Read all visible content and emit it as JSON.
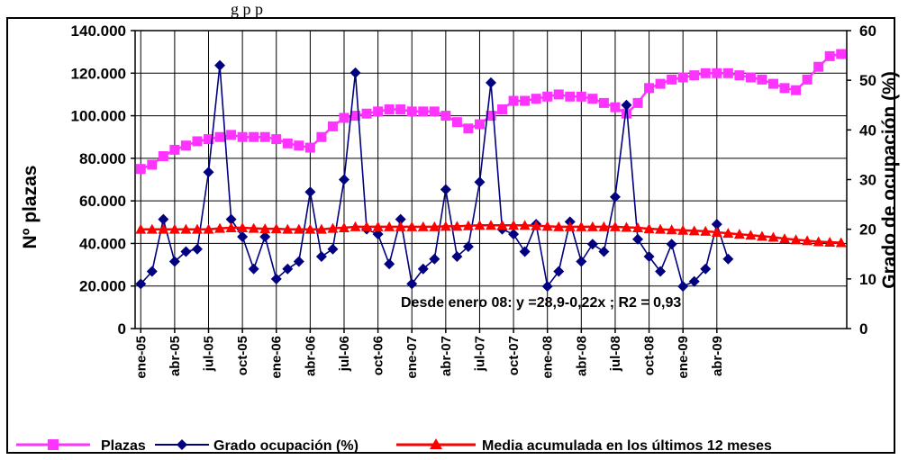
{
  "top_fragment": "g p p",
  "chart_data": {
    "type": "line",
    "ylabel_left": "Nº plazas",
    "ylabel_right": "Grado de ocupación (%)",
    "y_left_lim": [
      0,
      140000
    ],
    "y_right_lim": [
      0,
      60
    ],
    "y_left_ticks": [
      "0",
      "20.000",
      "40.000",
      "60.000",
      "80.000",
      "100.000",
      "120.000",
      "140.000"
    ],
    "y_right_ticks": [
      "0",
      "10",
      "20",
      "30",
      "40",
      "50",
      "60"
    ],
    "x_tick_labels": [
      "ene-05",
      "abr-05",
      "jul-05",
      "oct-05",
      "ene-06",
      "abr-06",
      "jul-06",
      "oct-06",
      "ene-07",
      "abr-07",
      "jul-07",
      "oct-07",
      "ene-08",
      "abr-08",
      "jul-08",
      "oct-08",
      "ene-09",
      "abr-09"
    ],
    "annotation": "Desde enero 08: y =28,9-0,22x ; R2 = 0,93",
    "grid": true,
    "legend_position": "bottom",
    "series": [
      {
        "name": "Plazas",
        "axis": "left",
        "color": "#ff33ff",
        "marker": "square",
        "values": [
          75000,
          77000,
          81000,
          84000,
          86000,
          88000,
          89000,
          90000,
          91000,
          90000,
          90000,
          90000,
          89000,
          87000,
          86000,
          85000,
          90000,
          95000,
          99000,
          100000,
          101000,
          102000,
          103000,
          103000,
          102000,
          102000,
          102000,
          100000,
          97000,
          94000,
          96000,
          100000,
          103000,
          107000,
          107000,
          108000,
          109000,
          110000,
          109000,
          109000,
          108000,
          106000,
          104000,
          101000,
          106000,
          113000,
          115000,
          117000,
          118000,
          119000,
          120000,
          120000,
          120000,
          119000,
          118000,
          117000,
          115000,
          113000,
          112000,
          117000,
          123000,
          128000,
          129000
        ]
      },
      {
        "name": "Grado ocupación (%)",
        "axis": "right",
        "color": "#000080",
        "marker": "diamond",
        "values": [
          9,
          11.5,
          22,
          13.5,
          15.5,
          16,
          31.5,
          53,
          22,
          18.5,
          12,
          18.5,
          10,
          12,
          13.5,
          27.5,
          14.5,
          16,
          30,
          51.5,
          20,
          19,
          13,
          22,
          9,
          12,
          14,
          28,
          14.5,
          16.5,
          29.5,
          49.5,
          20,
          19,
          15.5,
          21,
          8.5,
          11.5,
          21.5,
          13.5,
          17,
          15.5,
          26.5,
          45,
          18,
          14.5,
          11.5,
          17,
          8.5,
          9.5,
          12,
          21,
          14
        ]
      },
      {
        "name": "Media acumulada en los últimos  12 meses",
        "axis": "right",
        "color": "#ff0000",
        "marker": "triangle",
        "values": [
          20,
          20,
          20,
          20,
          20,
          20,
          20,
          20.2,
          20.3,
          20.3,
          20.2,
          20.1,
          20.1,
          20,
          20,
          20,
          20,
          20.2,
          20.3,
          20.5,
          20.5,
          20.5,
          20.5,
          20.5,
          20.5,
          20.5,
          20.5,
          20.6,
          20.6,
          20.7,
          20.8,
          20.8,
          20.8,
          20.8,
          20.8,
          20.7,
          20.6,
          20.5,
          20.5,
          20.5,
          20.5,
          20.5,
          20.5,
          20.4,
          20.3,
          20.1,
          20,
          19.9,
          19.8,
          19.7,
          19.6,
          19.4,
          19.2,
          19.0,
          18.8,
          18.6,
          18.4,
          18.1,
          17.9,
          17.7,
          17.5,
          17.4,
          17.3
        ]
      }
    ]
  }
}
